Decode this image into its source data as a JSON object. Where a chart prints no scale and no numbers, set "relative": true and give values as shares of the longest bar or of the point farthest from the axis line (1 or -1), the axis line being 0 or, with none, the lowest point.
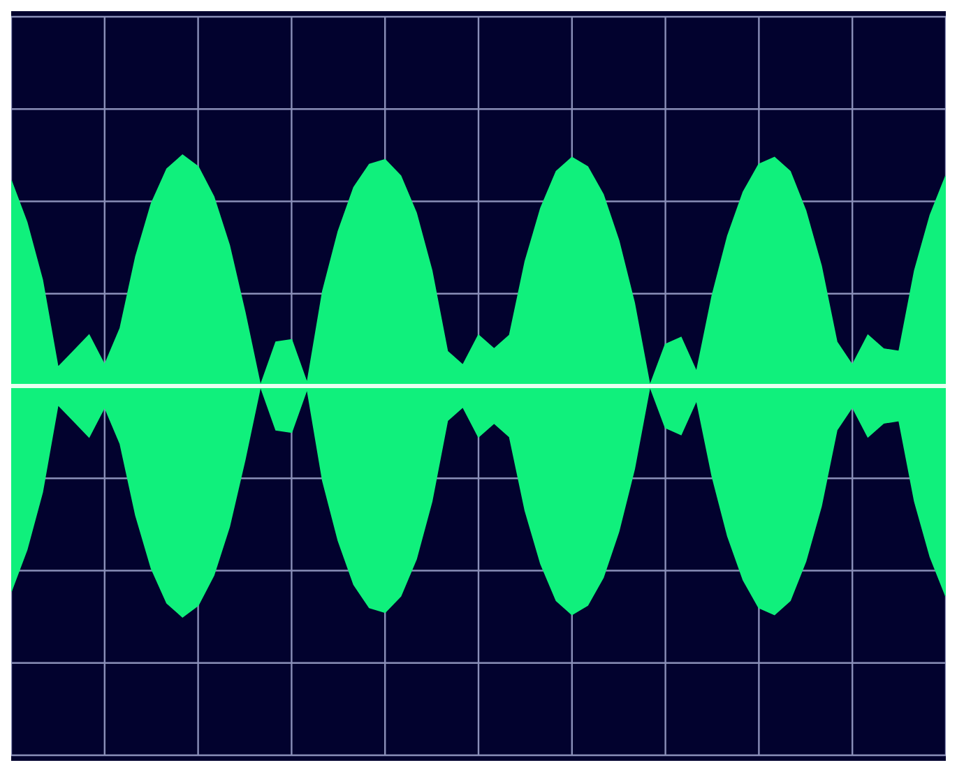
{
  "chart_data": {
    "type": "area",
    "relative": true,
    "grid": true,
    "legend": false,
    "ref_lines": [
      {
        "axis": "y",
        "value": 0,
        "color": "#e8fff0"
      }
    ],
    "categories": [
      null,
      null,
      null,
      null,
      null,
      null,
      null,
      null,
      null,
      null,
      null,
      null,
      null,
      null,
      null,
      null,
      null,
      null,
      null,
      null,
      null,
      null,
      null,
      null,
      null,
      null,
      null,
      null,
      null,
      null,
      null,
      null,
      null,
      null,
      null,
      null,
      null,
      null,
      null,
      null,
      null,
      null,
      null,
      null,
      null,
      null,
      null,
      null,
      null,
      null,
      null,
      null,
      null,
      null,
      null,
      null,
      null,
      null,
      null,
      null,
      null
    ],
    "series": [
      {
        "color": "#10f07c",
        "values": [
          0.89,
          0.71,
          0.46,
          0.08,
          0.15,
          0.22,
          0.09,
          0.25,
          0.56,
          0.79,
          0.94,
          1,
          0.95,
          0.82,
          0.61,
          0.32,
          0,
          0.19,
          0.2,
          0.01,
          0.41,
          0.67,
          0.86,
          0.96,
          0.98,
          0.91,
          0.75,
          0.5,
          0.15,
          0.09,
          0.22,
          0.16,
          0.22,
          0.54,
          0.77,
          0.93,
          0.99,
          0.95,
          0.83,
          0.63,
          0.36,
          0,
          0.18,
          0.21,
          0.06,
          0.39,
          0.65,
          0.84,
          0.96,
          0.99,
          0.93,
          0.76,
          0.52,
          0.19,
          0.09,
          0.22,
          0.16,
          0.15,
          0.5,
          0.74,
          0.91
        ]
      },
      {
        "color": "#10f07c",
        "values": [
          -0.89,
          -0.71,
          -0.46,
          -0.08,
          -0.15,
          -0.22,
          -0.09,
          -0.25,
          -0.56,
          -0.79,
          -0.94,
          -1,
          -0.95,
          -0.82,
          -0.61,
          -0.32,
          0,
          -0.19,
          -0.2,
          -0.01,
          -0.41,
          -0.67,
          -0.86,
          -0.96,
          -0.98,
          -0.91,
          -0.75,
          -0.5,
          -0.15,
          -0.09,
          -0.22,
          -0.16,
          -0.22,
          -0.54,
          -0.77,
          -0.93,
          -0.99,
          -0.95,
          -0.83,
          -0.63,
          -0.36,
          0,
          -0.18,
          -0.21,
          -0.06,
          -0.39,
          -0.65,
          -0.84,
          -0.96,
          -0.99,
          -0.93,
          -0.76,
          -0.52,
          -0.19,
          -0.09,
          -0.22,
          -0.16,
          -0.15,
          -0.5,
          -0.74,
          -0.91
        ]
      }
    ]
  }
}
